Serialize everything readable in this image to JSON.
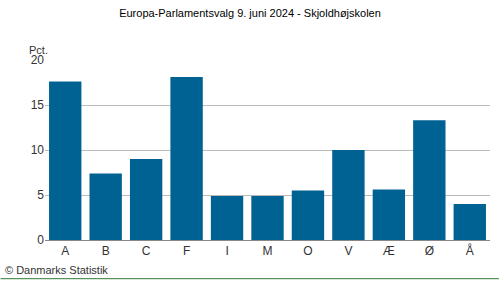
{
  "chart_data": {
    "type": "bar",
    "title": "Europa-Parlamentsvalg 9. juni 2024 - Skjoldhøjskolen",
    "ylabel": "Pct.",
    "note": "© Danmarks Statistik",
    "categories": [
      "A",
      "B",
      "C",
      "F",
      "I",
      "M",
      "O",
      "V",
      "Æ",
      "Ø",
      "Å"
    ],
    "values": [
      17.6,
      7.4,
      9.0,
      18.1,
      4.9,
      4.9,
      5.5,
      10.0,
      5.6,
      13.3,
      4.0
    ],
    "color": "#006193",
    "ylim": [
      0,
      20
    ],
    "yticks": [
      0,
      5,
      10,
      15,
      20
    ],
    "grid": true
  }
}
